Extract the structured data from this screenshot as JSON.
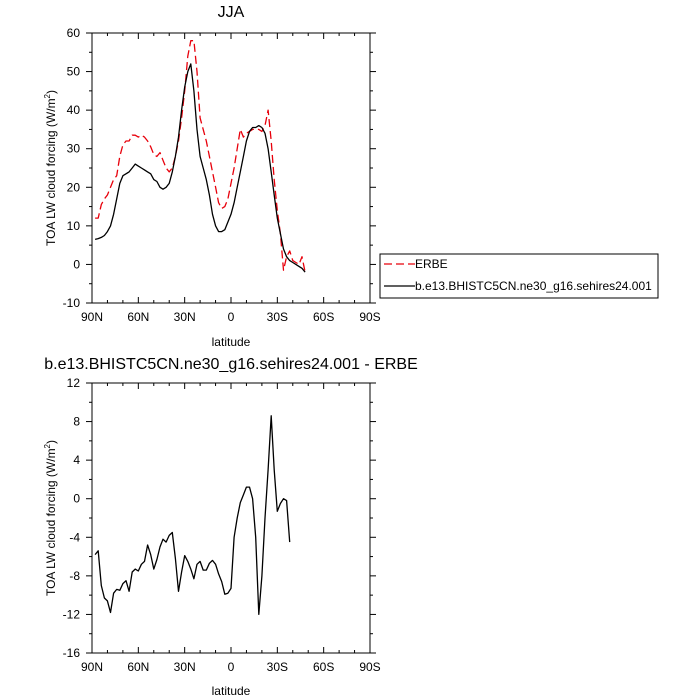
{
  "chart_data": [
    {
      "type": "line",
      "title": "JJA",
      "xlabel": "latitude",
      "ylabel_main": "TOA LW cloud forcing (W/m",
      "ylabel_sup": "2",
      "ylabel_close": ")",
      "xlim": [
        90,
        -90
      ],
      "ylim": [
        -10,
        60
      ],
      "x_ticks": [
        {
          "value": 90,
          "label": "90N"
        },
        {
          "value": 60,
          "label": "60N"
        },
        {
          "value": 30,
          "label": "30N"
        },
        {
          "value": 0,
          "label": "0"
        },
        {
          "value": -30,
          "label": "30S"
        },
        {
          "value": -60,
          "label": "60S"
        },
        {
          "value": -90,
          "label": "90S"
        }
      ],
      "y_ticks": [
        -10,
        0,
        10,
        20,
        30,
        40,
        50,
        60
      ],
      "legend": "right",
      "series": [
        {
          "name": "ERBE",
          "color": "#e8000b",
          "dash": "8,4",
          "points": [
            [
              88,
              12
            ],
            [
              86,
              12
            ],
            [
              84,
              15.5
            ],
            [
              82,
              17
            ],
            [
              80,
              18
            ],
            [
              78,
              20
            ],
            [
              76,
              22
            ],
            [
              74,
              23
            ],
            [
              72,
              28
            ],
            [
              70,
              31
            ],
            [
              68,
              32
            ],
            [
              66,
              32
            ],
            [
              64,
              33.5
            ],
            [
              62,
              33.5
            ],
            [
              60,
              33
            ],
            [
              58,
              33.5
            ],
            [
              56,
              33
            ],
            [
              54,
              32
            ],
            [
              52,
              30.5
            ],
            [
              50,
              28.5
            ],
            [
              48,
              28
            ],
            [
              46,
              29
            ],
            [
              44,
              27
            ],
            [
              42,
              25
            ],
            [
              40,
              24
            ],
            [
              38,
              25
            ],
            [
              36,
              28
            ],
            [
              34,
              32
            ],
            [
              32,
              38
            ],
            [
              30,
              45
            ],
            [
              28,
              54
            ],
            [
              26,
              58
            ],
            [
              24,
              58
            ],
            [
              22,
              50
            ],
            [
              20,
              38
            ],
            [
              18,
              35
            ],
            [
              16,
              32
            ],
            [
              14,
              28
            ],
            [
              12,
              24
            ],
            [
              10,
              20
            ],
            [
              8,
              16
            ],
            [
              6,
              14.5
            ],
            [
              4,
              15
            ],
            [
              2,
              17
            ],
            [
              0,
              21
            ],
            [
              -2,
              25
            ],
            [
              -4,
              30
            ],
            [
              -6,
              35
            ],
            [
              -8,
              33
            ],
            [
              -10,
              34
            ],
            [
              -12,
              34.5
            ],
            [
              -14,
              35
            ],
            [
              -16,
              35
            ],
            [
              -18,
              35
            ],
            [
              -20,
              34.5
            ],
            [
              -22,
              36
            ],
            [
              -24,
              40
            ],
            [
              -26,
              32
            ],
            [
              -28,
              22
            ],
            [
              -30,
              14
            ],
            [
              -32,
              8
            ],
            [
              -34,
              -1.5
            ],
            [
              -36,
              2
            ],
            [
              -38,
              3.5
            ],
            [
              -40,
              1
            ],
            [
              -42,
              0.5
            ],
            [
              -44,
              0
            ],
            [
              -46,
              2
            ],
            [
              -48,
              -2
            ]
          ]
        },
        {
          "name": "b.e13.BHISTC5CN.ne30_g16.sehires24.001",
          "color": "#000000",
          "dash": "",
          "points": [
            [
              88,
              6.5
            ],
            [
              86,
              6.7
            ],
            [
              84,
              7
            ],
            [
              82,
              7.5
            ],
            [
              80,
              8.5
            ],
            [
              78,
              10
            ],
            [
              76,
              13
            ],
            [
              74,
              17
            ],
            [
              72,
              21
            ],
            [
              70,
              23
            ],
            [
              68,
              23.5
            ],
            [
              66,
              24
            ],
            [
              64,
              25
            ],
            [
              62,
              26
            ],
            [
              60,
              25.5
            ],
            [
              58,
              25
            ],
            [
              56,
              24.5
            ],
            [
              54,
              24
            ],
            [
              52,
              23.5
            ],
            [
              50,
              22
            ],
            [
              48,
              21.5
            ],
            [
              46,
              20
            ],
            [
              44,
              19.5
            ],
            [
              42,
              20
            ],
            [
              40,
              21
            ],
            [
              38,
              24
            ],
            [
              36,
              28
            ],
            [
              34,
              33
            ],
            [
              32,
              40
            ],
            [
              30,
              46
            ],
            [
              28,
              50
            ],
            [
              26,
              52
            ],
            [
              24,
              45
            ],
            [
              22,
              35
            ],
            [
              20,
              28
            ],
            [
              18,
              25
            ],
            [
              16,
              22
            ],
            [
              14,
              18
            ],
            [
              12,
              13
            ],
            [
              10,
              10
            ],
            [
              8,
              8.5
            ],
            [
              6,
              8.5
            ],
            [
              4,
              9
            ],
            [
              2,
              11
            ],
            [
              0,
              13
            ],
            [
              -2,
              16
            ],
            [
              -4,
              20
            ],
            [
              -6,
              24
            ],
            [
              -8,
              28
            ],
            [
              -10,
              32
            ],
            [
              -12,
              34.5
            ],
            [
              -14,
              35.5
            ],
            [
              -16,
              35.5
            ],
            [
              -18,
              36
            ],
            [
              -20,
              35.5
            ],
            [
              -22,
              34
            ],
            [
              -24,
              30
            ],
            [
              -26,
              24
            ],
            [
              -28,
              18
            ],
            [
              -30,
              12
            ],
            [
              -32,
              8
            ],
            [
              -34,
              4
            ],
            [
              -36,
              2
            ],
            [
              -38,
              1
            ],
            [
              -40,
              0.5
            ],
            [
              -42,
              0
            ],
            [
              -44,
              -0.5
            ],
            [
              -46,
              -1
            ],
            [
              -48,
              -2
            ]
          ]
        }
      ]
    },
    {
      "type": "line",
      "title": "b.e13.BHISTC5CN.ne30_g16.sehires24.001 - ERBE",
      "xlabel": "latitude",
      "ylabel_main": "TOA LW cloud forcing (W/m",
      "ylabel_sup": "2",
      "ylabel_close": ")",
      "xlim": [
        90,
        -90
      ],
      "ylim": [
        -16,
        12
      ],
      "x_ticks": [
        {
          "value": 90,
          "label": "90N"
        },
        {
          "value": 60,
          "label": "60N"
        },
        {
          "value": 30,
          "label": "30N"
        },
        {
          "value": 0,
          "label": "0"
        },
        {
          "value": -30,
          "label": "30S"
        },
        {
          "value": -60,
          "label": "60S"
        },
        {
          "value": -90,
          "label": "90S"
        }
      ],
      "y_ticks": [
        -16,
        -12,
        -8,
        -4,
        0,
        4,
        8,
        12
      ],
      "series": [
        {
          "color": "#000000",
          "dash": "",
          "points": [
            [
              88,
              -5.8
            ],
            [
              86,
              -5.4
            ],
            [
              84,
              -9
            ],
            [
              82,
              -10.3
            ],
            [
              80,
              -10.6
            ],
            [
              78,
              -11.8
            ],
            [
              76,
              -9.8
            ],
            [
              74,
              -9.4
            ],
            [
              72,
              -9.5
            ],
            [
              70,
              -8.8
            ],
            [
              68,
              -8.5
            ],
            [
              66,
              -9.6
            ],
            [
              64,
              -7.6
            ],
            [
              62,
              -7.3
            ],
            [
              60,
              -7.5
            ],
            [
              58,
              -6.8
            ],
            [
              56,
              -6.5
            ],
            [
              54,
              -4.8
            ],
            [
              52,
              -5.8
            ],
            [
              50,
              -7.3
            ],
            [
              48,
              -6.3
            ],
            [
              46,
              -5
            ],
            [
              44,
              -4.2
            ],
            [
              42,
              -4.5
            ],
            [
              40,
              -3.8
            ],
            [
              38,
              -3.5
            ],
            [
              36,
              -6.2
            ],
            [
              34,
              -9.6
            ],
            [
              32,
              -7.6
            ],
            [
              30,
              -5.9
            ],
            [
              28,
              -6.5
            ],
            [
              26,
              -7.3
            ],
            [
              24,
              -8.3
            ],
            [
              22,
              -6.8
            ],
            [
              20,
              -6.5
            ],
            [
              18,
              -7.4
            ],
            [
              16,
              -7.4
            ],
            [
              14,
              -6.7
            ],
            [
              12,
              -6.4
            ],
            [
              10,
              -6.8
            ],
            [
              8,
              -7.8
            ],
            [
              6,
              -8.6
            ],
            [
              4,
              -9.9
            ],
            [
              2,
              -9.8
            ],
            [
              0,
              -9.3
            ],
            [
              -2,
              -4
            ],
            [
              -4,
              -2
            ],
            [
              -6,
              -0.4
            ],
            [
              -8,
              0.4
            ],
            [
              -10,
              1.2
            ],
            [
              -12,
              1.2
            ],
            [
              -14,
              0
            ],
            [
              -16,
              -4
            ],
            [
              -18,
              -12
            ],
            [
              -20,
              -8
            ],
            [
              -22,
              -2
            ],
            [
              -24,
              3
            ],
            [
              -26,
              8.6
            ],
            [
              -28,
              3
            ],
            [
              -30,
              -1.3
            ],
            [
              -32,
              -0.5
            ],
            [
              -34,
              0
            ],
            [
              -36,
              -0.2
            ],
            [
              -38,
              -4.5
            ]
          ]
        }
      ]
    }
  ]
}
